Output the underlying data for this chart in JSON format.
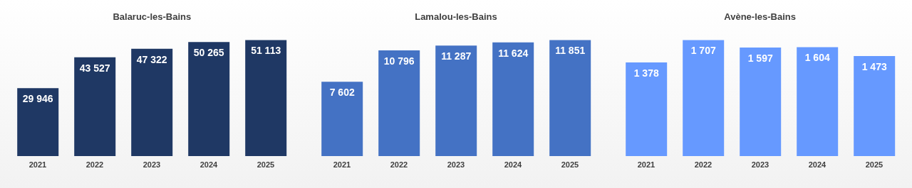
{
  "chart_data": [
    {
      "type": "bar",
      "title": "Balaruc-les-Bains",
      "categories": [
        "2021",
        "2022",
        "2023",
        "2024",
        "2025"
      ],
      "values": [
        29946,
        43527,
        47322,
        50265,
        51113
      ],
      "value_labels": [
        "29 946",
        "43 527",
        "47 322",
        "50 265",
        "51 113"
      ],
      "color": "#1f3864"
    },
    {
      "type": "bar",
      "title": "Lamalou-les-Bains",
      "categories": [
        "2021",
        "2022",
        "2023",
        "2024",
        "2025"
      ],
      "values": [
        7602,
        10796,
        11287,
        11624,
        11851
      ],
      "value_labels": [
        "7 602",
        "10 796",
        "11 287",
        "11 624",
        "11 851"
      ],
      "color": "#4472c4"
    },
    {
      "type": "bar",
      "title": "Avène-les-Bains",
      "categories": [
        "2021",
        "2022",
        "2023",
        "2024",
        "2025"
      ],
      "values": [
        1378,
        1707,
        1597,
        1604,
        1473
      ],
      "value_labels": [
        "1 378",
        "1 707",
        "1 597",
        "1 604",
        "1 473"
      ],
      "color": "#6699ff"
    }
  ]
}
